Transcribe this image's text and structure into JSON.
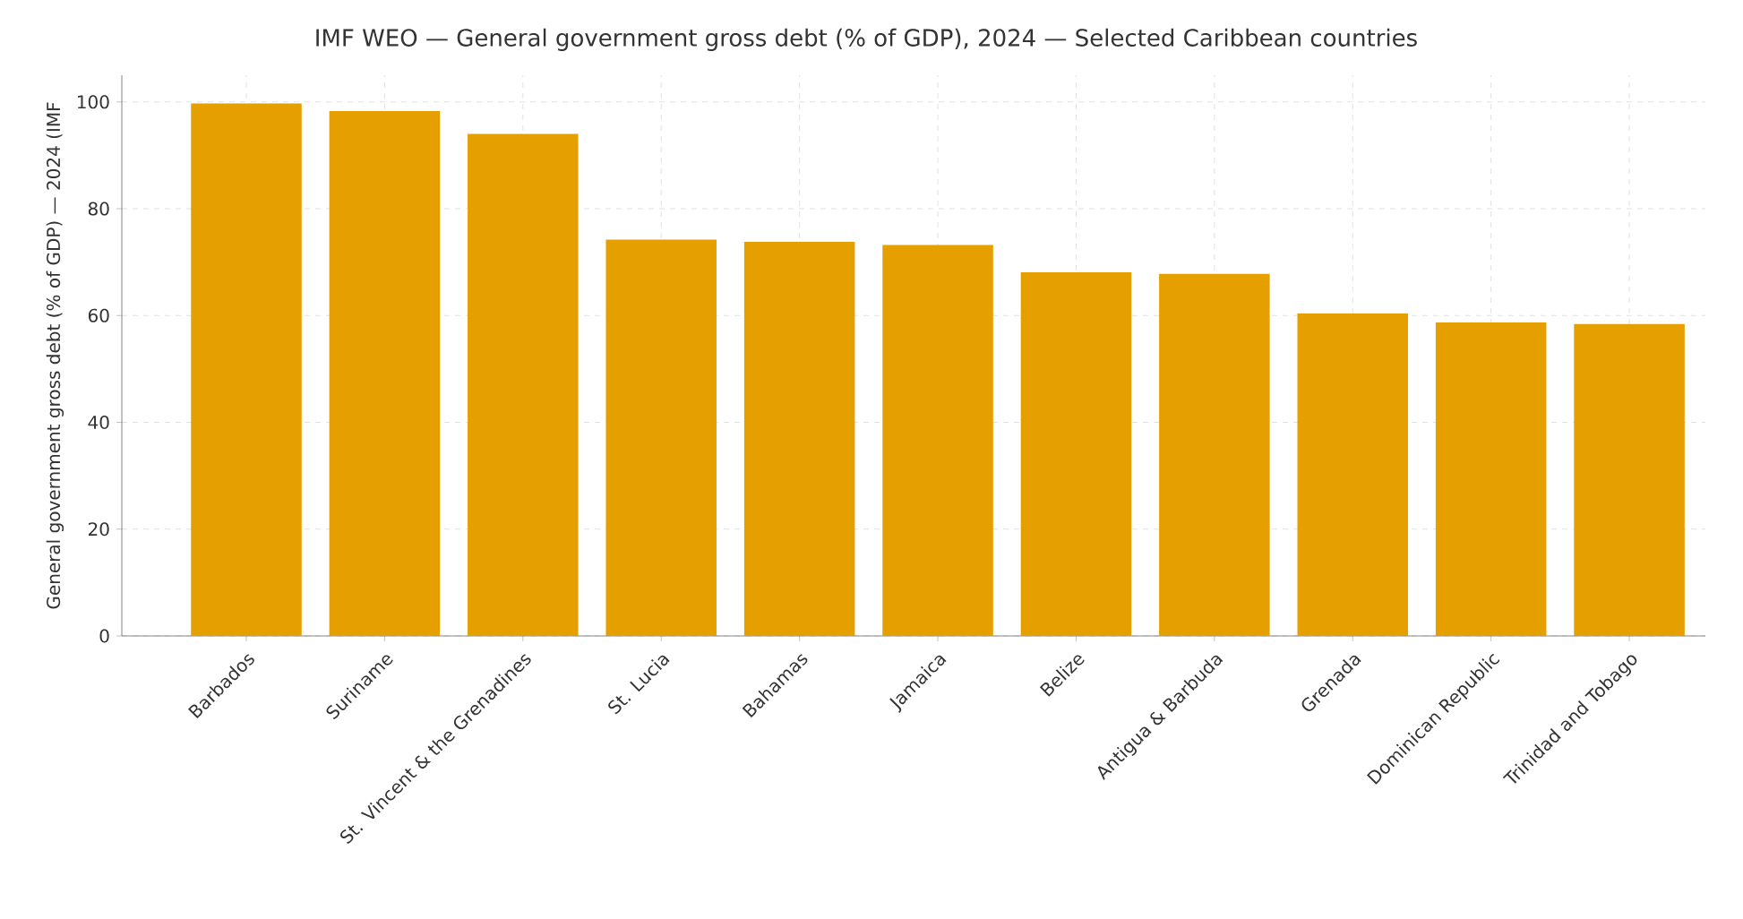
{
  "chart_data": {
    "type": "bar",
    "title": "IMF WEO — General government gross debt (% of GDP), 2024 — Selected Caribbean countries",
    "ylabel": "General government gross debt (% of GDP) — 2024 (IMF",
    "categories": [
      "Barbados",
      "Suriname",
      "St. Vincent & the Grenadines",
      "St. Lucia",
      "Bahamas",
      "Jamaica",
      "Belize",
      "Antigua & Barbuda",
      "Grenada",
      "Dominican Republic",
      "Trinidad and Tobago"
    ],
    "values": [
      99.7,
      98.3,
      94.0,
      74.2,
      73.8,
      73.2,
      68.1,
      67.8,
      60.4,
      58.7,
      58.4
    ],
    "color": "#e5a000",
    "ylim": [
      0,
      105
    ],
    "yticks": [
      0,
      20,
      40,
      60,
      80,
      100
    ],
    "grid": true
  }
}
